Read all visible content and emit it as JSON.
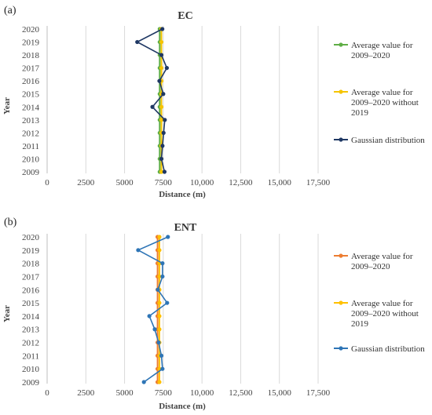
{
  "chart_data": [
    {
      "type": "line",
      "panel_label": "(a)",
      "title": "EC",
      "xlabel": "Distance (m)",
      "ylabel": "Year",
      "xlim": [
        0,
        17500
      ],
      "x_ticks": [
        0,
        2500,
        5000,
        7500,
        10000,
        12500,
        15000,
        17500
      ],
      "x_tick_labels": [
        "0",
        "2500",
        "5000",
        "7500",
        "10,000",
        "12,500",
        "15,000",
        "17,500"
      ],
      "y_categories": [
        "2009",
        "2010",
        "2011",
        "2012",
        "2013",
        "2014",
        "2015",
        "2016",
        "2017",
        "2018",
        "2019",
        "2020"
      ],
      "grid": "vertical",
      "legend_position": "right",
      "series": [
        {
          "name": "Average value for 2009–2020",
          "legend_lines": [
            "Average value for",
            "2009–2020"
          ],
          "color": "#5fae46",
          "values": [
            7270,
            7270,
            7270,
            7270,
            7270,
            7270,
            7270,
            7270,
            7270,
            7270,
            7270,
            7270
          ]
        },
        {
          "name": "Average value for 2009–2020 without 2019",
          "legend_lines": [
            "Average value for",
            "2009–2020 without",
            "2019"
          ],
          "color": "#f5c400",
          "values": [
            7380,
            7380,
            7380,
            7380,
            7380,
            7380,
            7380,
            7380,
            7380,
            7380,
            7380,
            7380
          ]
        },
        {
          "name": "Gaussian distribution",
          "legend_lines": [
            "Gaussian distribution"
          ],
          "color": "#1f3864",
          "values": [
            7580,
            7380,
            7450,
            7520,
            7600,
            6800,
            7500,
            7250,
            7730,
            7380,
            5820,
            7440
          ]
        }
      ]
    },
    {
      "type": "line",
      "panel_label": "(b)",
      "title": "ENT",
      "xlabel": "Distance (m)",
      "ylabel": "Year",
      "xlim": [
        0,
        17500
      ],
      "x_ticks": [
        0,
        2500,
        5000,
        7500,
        10000,
        12500,
        15000,
        17500
      ],
      "x_tick_labels": [
        "0",
        "2500",
        "5000",
        "7500",
        "10,000",
        "12,500",
        "15,000",
        "17,500"
      ],
      "y_categories": [
        "2009",
        "2010",
        "2011",
        "2012",
        "2013",
        "2014",
        "2015",
        "2016",
        "2017",
        "2018",
        "2019",
        "2020"
      ],
      "grid": "vertical",
      "legend_position": "right",
      "series": [
        {
          "name": "Average value for 2009–2020",
          "legend_lines": [
            "Average value for",
            "2009–2020"
          ],
          "color": "#ed7d31",
          "values": [
            7130,
            7130,
            7130,
            7130,
            7130,
            7130,
            7130,
            7130,
            7130,
            7130,
            7130,
            7130
          ]
        },
        {
          "name": "Average value for 2009–2020 without 2019",
          "legend_lines": [
            "Average value for",
            "2009–2020 without",
            "2019"
          ],
          "color": "#ffc000",
          "values": [
            7250,
            7250,
            7250,
            7250,
            7250,
            7250,
            7250,
            7250,
            7250,
            7250,
            7250,
            7250
          ]
        },
        {
          "name": "Gaussian distribution",
          "legend_lines": [
            "Gaussian distribution"
          ],
          "color": "#2e75b6",
          "values": [
            6250,
            7450,
            7380,
            7200,
            6950,
            6600,
            7750,
            7150,
            7450,
            7450,
            5880,
            7800
          ]
        }
      ]
    }
  ]
}
